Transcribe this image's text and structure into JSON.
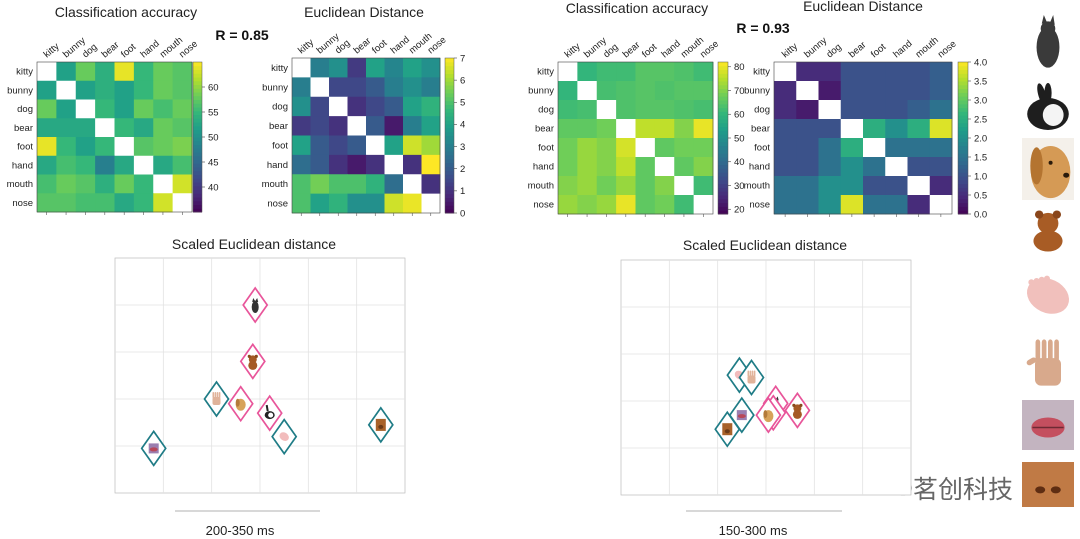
{
  "panels": [
    {
      "title_acc": "Classification accuracy",
      "title_dist": "Euclidean Distance",
      "r_label": "R = 0.85",
      "mds_title": "Scaled Euclidean distance",
      "time_label": "200-350 ms"
    },
    {
      "title_acc": "Classification accuracy",
      "title_dist": "Euclidean Distance",
      "r_label": "R = 0.93",
      "mds_title": "Scaled Euclidean distance",
      "time_label": "150-300 ms"
    }
  ],
  "watermark": {
    "text": "茗创科技",
    "icon": "wechat-icon"
  },
  "category_images": [
    "cat-photo",
    "rabbit-photo",
    "dog-photo",
    "teddy-bear-photo",
    "foot-photo",
    "hand-photo",
    "mouth-photo",
    "nose-photo"
  ],
  "colors": {
    "animal": "#e8559a",
    "body": "#1f7c86"
  },
  "chart_data": [
    {
      "type": "heatmap",
      "title": "Classification accuracy",
      "labels": [
        "kitty",
        "bunny",
        "dog",
        "bear",
        "foot",
        "hand",
        "mouth",
        "nose"
      ],
      "colorbar": {
        "min": 35,
        "max": 65,
        "ticks": [
          40,
          45,
          50,
          55,
          60
        ]
      },
      "values": [
        [
          null,
          52,
          58,
          54,
          64,
          55,
          58,
          57
        ],
        [
          52,
          null,
          52,
          54,
          52,
          55,
          58,
          57
        ],
        [
          58,
          52,
          null,
          55,
          52,
          58,
          56,
          58
        ],
        [
          53,
          53,
          53,
          null,
          55,
          53,
          58,
          57
        ],
        [
          64,
          55,
          52,
          55,
          null,
          57,
          58,
          59
        ],
        [
          53,
          56,
          55,
          48,
          53,
          null,
          53,
          56
        ],
        [
          56,
          58,
          57,
          54,
          58,
          55,
          null,
          63
        ],
        [
          57,
          57,
          56,
          56,
          53,
          55,
          63,
          null
        ]
      ]
    },
    {
      "type": "heatmap",
      "title": "Euclidean Distance",
      "labels": [
        "kitty",
        "bunny",
        "dog",
        "bear",
        "foot",
        "hand",
        "mouth",
        "nose"
      ],
      "colorbar": {
        "min": 0,
        "max": 7,
        "ticks": [
          0,
          1,
          2,
          3,
          4,
          5,
          6,
          7
        ]
      },
      "values": [
        [
          null,
          3.0,
          3.5,
          1.2,
          4.0,
          3.2,
          4.0,
          3.5
        ],
        [
          3.0,
          null,
          1.5,
          1.5,
          2.0,
          3.0,
          3.5,
          3.0
        ],
        [
          3.5,
          1.5,
          null,
          1.0,
          1.5,
          2.0,
          4.0,
          4.5
        ],
        [
          1.2,
          1.5,
          1.0,
          null,
          2.0,
          0.5,
          3.0,
          4.0
        ],
        [
          4.0,
          2.0,
          1.5,
          2.0,
          null,
          4.0,
          6.5,
          6.0
        ],
        [
          2.5,
          2.0,
          1.0,
          0.5,
          1.0,
          null,
          1.0,
          7.0
        ],
        [
          5.0,
          5.5,
          5.0,
          5.0,
          4.5,
          2.5,
          null,
          1.0
        ],
        [
          5.0,
          4.0,
          4.5,
          3.5,
          3.5,
          6.5,
          6.8,
          null
        ]
      ]
    },
    {
      "type": "heatmap",
      "title": "Classification accuracy",
      "labels": [
        "kitty",
        "bunny",
        "dog",
        "bear",
        "foot",
        "hand",
        "mouth",
        "nose"
      ],
      "colorbar": {
        "min": 18,
        "max": 82,
        "ticks": [
          20,
          30,
          40,
          50,
          60,
          70,
          80
        ]
      },
      "values": [
        [
          null,
          60,
          62,
          62,
          65,
          65,
          64,
          62
        ],
        [
          60,
          null,
          63,
          64,
          65,
          64,
          65,
          65
        ],
        [
          62,
          63,
          null,
          64,
          65,
          65,
          64,
          63
        ],
        [
          66,
          66,
          68,
          null,
          76,
          76,
          70,
          80
        ],
        [
          68,
          72,
          70,
          78,
          null,
          66,
          68,
          68
        ],
        [
          68,
          72,
          70,
          76,
          66,
          null,
          66,
          70
        ],
        [
          70,
          72,
          68,
          72,
          66,
          70,
          null,
          62
        ],
        [
          72,
          70,
          72,
          80,
          66,
          68,
          62,
          null
        ]
      ]
    },
    {
      "type": "heatmap",
      "title": "Euclidean Distance",
      "labels": [
        "kitty",
        "bunny",
        "dog",
        "bear",
        "foot",
        "hand",
        "mouth",
        "nose"
      ],
      "colorbar": {
        "min": 0,
        "max": 4,
        "ticks": [
          0.0,
          0.5,
          1.0,
          1.5,
          2.0,
          2.5,
          3.0,
          3.5,
          4.0
        ]
      },
      "values": [
        [
          null,
          0.5,
          0.5,
          1.0,
          1.0,
          1.0,
          1.0,
          1.2
        ],
        [
          0.5,
          null,
          0.3,
          1.0,
          1.0,
          1.0,
          1.0,
          1.2
        ],
        [
          0.5,
          0.3,
          null,
          1.0,
          1.0,
          1.0,
          1.2,
          1.5
        ],
        [
          1.0,
          1.0,
          1.0,
          null,
          2.5,
          2.0,
          2.5,
          3.8
        ],
        [
          1.0,
          1.0,
          1.5,
          2.5,
          null,
          1.5,
          1.5,
          1.5
        ],
        [
          1.0,
          1.0,
          1.5,
          2.0,
          1.5,
          null,
          1.0,
          1.0
        ],
        [
          1.5,
          1.5,
          2.0,
          2.0,
          1.0,
          1.0,
          null,
          0.5
        ],
        [
          1.5,
          1.5,
          2.0,
          3.8,
          1.5,
          1.5,
          0.5,
          null
        ]
      ]
    },
    {
      "type": "scatter",
      "title": "Scaled Euclidean distance",
      "xlabel": "200-350 ms",
      "xlim": [
        0,
        6
      ],
      "ylim": [
        0,
        5
      ],
      "grid": true,
      "points": [
        {
          "label": "kitty",
          "group": "animal",
          "x": 2.9,
          "y": 4.0
        },
        {
          "label": "bear",
          "group": "animal",
          "x": 2.85,
          "y": 2.8
        },
        {
          "label": "dog",
          "group": "animal",
          "x": 2.6,
          "y": 1.9
        },
        {
          "label": "hand",
          "group": "body",
          "x": 2.1,
          "y": 2.0
        },
        {
          "label": "bunny",
          "group": "animal",
          "x": 3.2,
          "y": 1.7
        },
        {
          "label": "foot",
          "group": "body",
          "x": 3.5,
          "y": 1.2
        },
        {
          "label": "mouth",
          "group": "body",
          "x": 0.8,
          "y": 0.95
        },
        {
          "label": "nose",
          "group": "body",
          "x": 5.5,
          "y": 1.45
        }
      ]
    },
    {
      "type": "scatter",
      "title": "Scaled Euclidean distance",
      "xlabel": "150-300 ms",
      "xlim": [
        0,
        6
      ],
      "ylim": [
        0,
        5
      ],
      "grid": true,
      "points": [
        {
          "label": "foot",
          "group": "body",
          "x": 2.45,
          "y": 2.55
        },
        {
          "label": "hand",
          "group": "body",
          "x": 2.7,
          "y": 2.5
        },
        {
          "label": "kitty",
          "group": "animal",
          "x": 3.2,
          "y": 1.95
        },
        {
          "label": "bunny",
          "group": "animal",
          "x": 3.15,
          "y": 1.75
        },
        {
          "label": "dog",
          "group": "animal",
          "x": 3.05,
          "y": 1.7
        },
        {
          "label": "bear",
          "group": "animal",
          "x": 3.65,
          "y": 1.8
        },
        {
          "label": "mouth",
          "group": "body",
          "x": 2.5,
          "y": 1.7
        },
        {
          "label": "nose",
          "group": "body",
          "x": 2.2,
          "y": 1.4
        }
      ]
    }
  ]
}
